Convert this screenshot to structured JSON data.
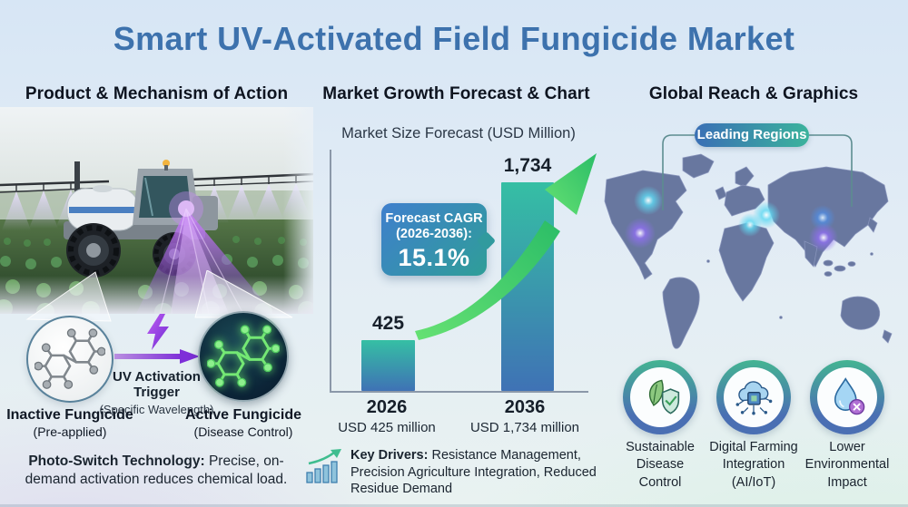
{
  "title": "Smart UV-Activated Field Fungicide Market",
  "left": {
    "header": "Product & Mechanism of Action",
    "inactive": {
      "label": "Inactive Fungicide",
      "sub": "(Pre-applied)"
    },
    "trigger": {
      "line1": "UV Activation",
      "line2": "Trigger",
      "sub": "(Specific Wavelength)"
    },
    "active": {
      "label": "Active Fungicide",
      "sub": "(Disease Control)"
    },
    "footnote": {
      "bold": "Photo-Switch Technology:",
      "rest": " Precise, on-demand activation reduces chemical load."
    }
  },
  "middle": {
    "header": "Market Growth Forecast & Chart",
    "chart_title": "Market Size Forecast (USD Million)",
    "badge": {
      "line1": "Forecast CAGR",
      "line2": "(2026-2036):",
      "value": "15.1%"
    },
    "footnote": {
      "bold": "Key Drivers:",
      "rest": " Resistance Management, Precision Agriculture Integration, Reduced Residue Demand"
    }
  },
  "right": {
    "header": "Global Reach & Graphics",
    "map_badge": "Leading Regions",
    "features": [
      {
        "icon": "leaf-shield-icon",
        "label": "Sustainable\nDisease\nControl"
      },
      {
        "icon": "cloud-chip-icon",
        "label": "Digital Farming\nIntegration\n(AI/IoT)"
      },
      {
        "icon": "droplet-x-icon",
        "label": "Lower\nEnvironmental\nImpact"
      }
    ]
  },
  "chart_data": {
    "type": "bar",
    "title": "Market Size Forecast (USD Million)",
    "categories": [
      "2026",
      "2036"
    ],
    "values": [
      425,
      1734
    ],
    "value_labels": [
      "425",
      "1,734"
    ],
    "category_sublabels": [
      "USD 425 million",
      "USD 1,734 million"
    ],
    "annotation": "Forecast CAGR (2026-2036): 15.1%",
    "ylabel": "USD Million",
    "ylim": [
      0,
      1900
    ],
    "grid": false,
    "legend": false,
    "bar_gradient": [
      "#35bfa4",
      "#3f72b5"
    ],
    "trend_arrow_color": "#3ecb66"
  },
  "colors": {
    "title_blue": "#3d72ad",
    "badge_blue": "#3f7fcd",
    "badge_teal": "#2f9e98",
    "pill_blue": "#3a6fb5",
    "pill_teal": "#3bb39c",
    "map_slate": "#68779f",
    "ring_teal": "#44b492",
    "ring_blue": "#4a6fb3",
    "uv_purple": "#9b4de0",
    "molecule_green": "#6fe86f",
    "glow_cyan": "#5fd9f2",
    "glow_violet": "#8f6ff0"
  }
}
